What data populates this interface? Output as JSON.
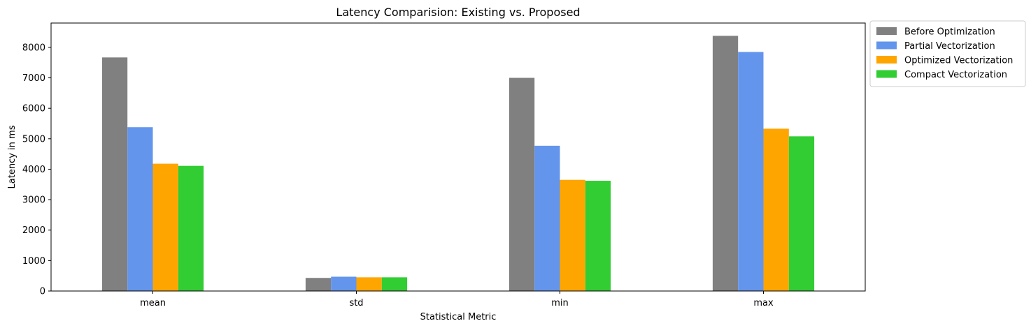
{
  "chart_data": {
    "type": "bar",
    "title": "Latency Comparision: Existing vs. Proposed",
    "xlabel": "Statistical Metric",
    "ylabel": "Latency in ms",
    "categories": [
      "mean",
      "std",
      "min",
      "max"
    ],
    "ylim": [
      0,
      8800
    ],
    "yticks": [
      0,
      1000,
      2000,
      3000,
      4000,
      5000,
      6000,
      7000,
      8000
    ],
    "legend_position": "outside-top-right",
    "grid": false,
    "series": [
      {
        "name": "Before Optimization",
        "color": "#808080",
        "values": [
          7670,
          430,
          7000,
          8380
        ]
      },
      {
        "name": "Partial Vectorization",
        "color": "#6495ED",
        "values": [
          5380,
          470,
          4770,
          7850
        ]
      },
      {
        "name": "Optimized Vectorization",
        "color": "#FFA500",
        "values": [
          4180,
          450,
          3650,
          5330
        ]
      },
      {
        "name": "Compact Vectorization",
        "color": "#32CD32",
        "values": [
          4110,
          450,
          3620,
          5080
        ]
      }
    ]
  }
}
